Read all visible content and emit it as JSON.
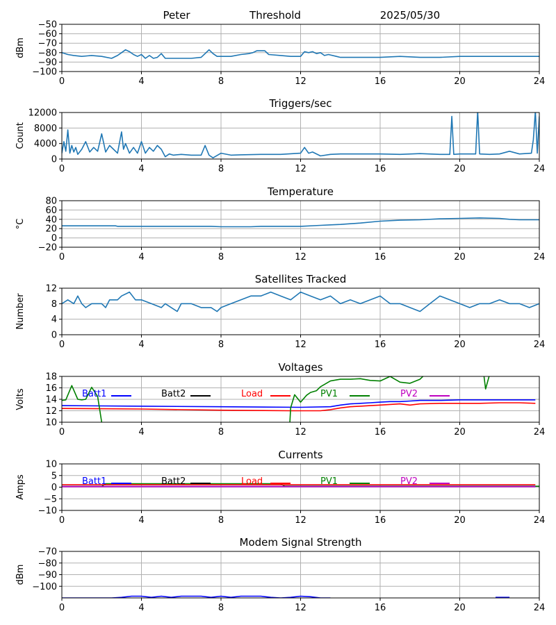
{
  "header": {
    "site": "Peter",
    "mode": "Threshold",
    "date": "2025/05/30"
  },
  "x_ticks": [
    "0",
    "4",
    "8",
    "12",
    "16",
    "20",
    "24"
  ],
  "colors": {
    "series": "#1f77b4",
    "grid": "#b0b0b0",
    "batt1": "#0000ff",
    "batt2": "#000000",
    "load": "#ff0000",
    "pv1": "#008000",
    "pv2": "#bf00bf"
  },
  "chart_data": [
    {
      "id": "threshold",
      "type": "line",
      "title": "",
      "ylabel": "dBm",
      "xlim": [
        0,
        24
      ],
      "ylim": [
        -100,
        -50
      ],
      "yticks": [
        -50,
        -60,
        -70,
        -80,
        -90,
        -100
      ],
      "grid": true,
      "series": [
        {
          "color": "#1f77b4",
          "x": [
            0,
            0.3,
            0.6,
            1,
            1.5,
            2,
            2.5,
            2.8,
            3,
            3.2,
            3.4,
            3.6,
            3.8,
            4,
            4.2,
            4.4,
            4.6,
            4.8,
            5,
            5.2,
            5.4,
            5.6,
            6,
            6.5,
            7,
            7.2,
            7.4,
            7.6,
            7.8,
            8,
            8.5,
            9,
            9.4,
            9.6,
            9.8,
            10,
            10.2,
            10.4,
            11,
            11.5,
            12,
            12.2,
            12.4,
            12.6,
            12.8,
            13,
            13.2,
            13.4,
            13.8,
            14,
            15,
            16,
            17,
            18,
            19,
            20,
            21,
            22,
            23,
            24
          ],
          "y": [
            -80,
            -82,
            -83,
            -84,
            -83,
            -84,
            -86,
            -83,
            -80,
            -77,
            -79,
            -82,
            -84,
            -82,
            -86,
            -83,
            -86,
            -85,
            -81,
            -86,
            -86,
            -86,
            -86,
            -86,
            -85,
            -81,
            -77,
            -81,
            -84,
            -84,
            -84,
            -82,
            -81,
            -80,
            -78,
            -78,
            -78,
            -82,
            -83,
            -84,
            -84,
            -79,
            -80,
            -79,
            -81,
            -80,
            -83,
            -82,
            -84,
            -85,
            -85,
            -85,
            -84,
            -85,
            -85,
            -84,
            -84,
            -84,
            -84,
            -84
          ]
        }
      ]
    },
    {
      "id": "triggers",
      "type": "line",
      "title": "Triggers/sec",
      "ylabel": "Count",
      "xlim": [
        0,
        24
      ],
      "ylim": [
        0,
        12000
      ],
      "yticks": [
        0,
        4000,
        8000,
        12000
      ],
      "grid": true,
      "series": [
        {
          "color": "#1f77b4",
          "x": [
            0,
            0.1,
            0.2,
            0.3,
            0.4,
            0.5,
            0.6,
            0.7,
            0.8,
            1,
            1.2,
            1.4,
            1.6,
            1.8,
            2,
            2.2,
            2.4,
            2.6,
            2.8,
            3,
            3.1,
            3.2,
            3.4,
            3.6,
            3.8,
            4,
            4.2,
            4.4,
            4.6,
            4.8,
            5,
            5.2,
            5.4,
            5.6,
            6,
            6.5,
            7,
            7.2,
            7.4,
            7.6,
            8,
            8.5,
            9,
            10,
            11,
            12,
            12.2,
            12.4,
            12.6,
            13,
            13.5,
            14,
            15,
            16,
            17,
            18,
            19,
            19.5,
            19.6,
            19.7,
            20,
            20.8,
            20.9,
            21,
            21.5,
            22,
            22.5,
            23,
            23.6,
            23.7,
            23.8,
            23.9,
            24
          ],
          "y": [
            1500,
            4500,
            2000,
            7500,
            1500,
            3500,
            1800,
            3000,
            1200,
            2500,
            4500,
            1800,
            3000,
            2000,
            6500,
            1800,
            3500,
            2500,
            1500,
            7000,
            2500,
            4000,
            1500,
            3000,
            1500,
            4500,
            1500,
            3000,
            2000,
            3500,
            2500,
            600,
            1300,
            1000,
            1200,
            1000,
            1000,
            3500,
            1000,
            300,
            1500,
            1000,
            1100,
            1200,
            1200,
            1500,
            3000,
            1500,
            1800,
            800,
            1200,
            1300,
            1300,
            1300,
            1200,
            1400,
            1200,
            1200,
            11000,
            1200,
            1300,
            1300,
            12500,
            1300,
            1200,
            1300,
            2000,
            1300,
            1500,
            5000,
            12300,
            1500,
            11000
          ]
        }
      ]
    },
    {
      "id": "temperature",
      "type": "line",
      "title": "Temperature",
      "ylabel": "°C",
      "xlim": [
        0,
        24
      ],
      "ylim": [
        -20,
        80
      ],
      "yticks": [
        80,
        60,
        40,
        20,
        0,
        -20
      ],
      "grid": true,
      "series": [
        {
          "color": "#1f77b4",
          "x": [
            0,
            2.7,
            2.8,
            7.5,
            8,
            9.5,
            10,
            12,
            13,
            13.5,
            14,
            15,
            16,
            17,
            18,
            19,
            20,
            21,
            22,
            22.5,
            23,
            24
          ],
          "y": [
            26,
            26,
            25,
            25,
            24,
            24,
            25,
            25,
            27,
            28,
            29,
            32,
            36,
            38,
            39,
            41,
            42,
            43,
            42,
            40,
            39,
            39
          ]
        }
      ]
    },
    {
      "id": "satellites",
      "type": "line",
      "title": "Satellites Tracked",
      "ylabel": "Number",
      "xlim": [
        0,
        24
      ],
      "ylim": [
        0,
        12
      ],
      "yticks": [
        12,
        8,
        4,
        0
      ],
      "grid": true,
      "series": [
        {
          "color": "#1f77b4",
          "x": [
            0,
            0.3,
            0.6,
            0.8,
            1,
            1.2,
            1.5,
            2,
            2.2,
            2.4,
            2.8,
            3,
            3.4,
            3.7,
            3.8,
            4,
            4.5,
            5,
            5.2,
            5.5,
            5.8,
            6,
            6.5,
            7,
            7.5,
            7.8,
            8,
            8.5,
            9,
            9.5,
            10,
            10.5,
            11,
            11.5,
            12,
            12.5,
            13,
            13.5,
            14,
            14.5,
            15,
            15.5,
            16,
            16.5,
            17,
            17.5,
            18,
            18.5,
            19,
            19.5,
            20,
            20.5,
            21,
            21.5,
            22,
            22.5,
            23,
            23.5,
            24
          ],
          "y": [
            8,
            9,
            8,
            10,
            8,
            7,
            8,
            8,
            7,
            9,
            9,
            10,
            11,
            9,
            9,
            9,
            8,
            7,
            8,
            7,
            6,
            8,
            8,
            7,
            7,
            6,
            7,
            8,
            9,
            10,
            10,
            11,
            10,
            9,
            11,
            10,
            9,
            10,
            8,
            9,
            8,
            9,
            10,
            8,
            8,
            7,
            6,
            8,
            10,
            9,
            8,
            7,
            8,
            8,
            9,
            8,
            8,
            7,
            8
          ]
        }
      ]
    },
    {
      "id": "voltages",
      "type": "line",
      "title": "Voltages",
      "ylabel": "Volts",
      "xlim": [
        0,
        24
      ],
      "ylim": [
        10,
        18
      ],
      "yticks": [
        18,
        16,
        14,
        12,
        10
      ],
      "grid": true,
      "legend": [
        "Batt1",
        "Batt2",
        "Load",
        "PV1",
        "PV2"
      ],
      "series": [
        {
          "name": "Batt1",
          "color": "#0000ff",
          "x": [
            0,
            4,
            8,
            12,
            13.5,
            14,
            14.5,
            15,
            15.5,
            16,
            16.5,
            17,
            17.5,
            18,
            19,
            20,
            21,
            22,
            23,
            23.8
          ],
          "y": [
            12.9,
            12.8,
            12.7,
            12.6,
            12.7,
            13.0,
            13.2,
            13.3,
            13.4,
            13.5,
            13.6,
            13.6,
            13.7,
            13.8,
            13.8,
            13.9,
            13.9,
            13.9,
            13.9,
            13.9
          ]
        },
        {
          "name": "Load",
          "color": "#ff0000",
          "x": [
            0,
            4,
            8,
            11.5,
            12,
            13,
            13.5,
            14,
            14.5,
            15,
            15.5,
            16,
            16.5,
            17,
            17.5,
            18,
            19,
            20,
            21,
            22,
            23,
            23.8
          ],
          "y": [
            12.4,
            12.3,
            12.1,
            12.0,
            12.0,
            12.0,
            12.2,
            12.5,
            12.7,
            12.8,
            12.9,
            13.0,
            13.1,
            13.2,
            13.0,
            13.2,
            13.3,
            13.3,
            13.3,
            13.4,
            13.4,
            13.3
          ],
          "color_key": "load"
        },
        {
          "name": "PV1",
          "color": "#008000",
          "x": [
            0,
            0.2,
            0.5,
            0.8,
            1,
            1.2,
            1.5,
            1.8,
            2,
            2.2,
            11.4,
            11.5,
            11.7,
            12,
            12.3,
            12.5,
            12.8,
            13,
            13.5,
            14,
            14.5,
            15,
            15.5,
            16,
            16.5,
            17,
            17.5,
            18,
            18.3,
            21.2,
            21.3,
            21.5
          ],
          "y": [
            13.8,
            13.9,
            16.4,
            14.0,
            13.9,
            14.0,
            16.1,
            14.5,
            10.0,
            6.0,
            6.0,
            12.5,
            14.8,
            13.5,
            14.7,
            15.2,
            15.5,
            16.2,
            17.2,
            17.5,
            17.5,
            17.6,
            17.3,
            17.2,
            18.0,
            17.0,
            16.8,
            17.5,
            18.5,
            18.5,
            15.8,
            18.3
          ]
        },
        {
          "name": "PV2",
          "color": "#bf00bf",
          "x": [],
          "y": []
        }
      ]
    },
    {
      "id": "currents",
      "type": "line",
      "title": "Currents",
      "ylabel": "Amps",
      "xlim": [
        0,
        24
      ],
      "ylim": [
        -10,
        10
      ],
      "yticks": [
        10,
        5,
        0,
        -5,
        -10
      ],
      "grid": true,
      "legend": [
        "Batt1",
        "Batt2",
        "Load",
        "PV1",
        "PV2"
      ],
      "series": [
        {
          "name": "PV1",
          "color": "#008000",
          "x": [
            0,
            2,
            2.2,
            11,
            11.2,
            24
          ],
          "y": [
            0.3,
            0.3,
            1.5,
            1.5,
            0.4,
            0.4
          ]
        },
        {
          "name": "Load",
          "color": "#ff0000",
          "x": [
            0,
            4,
            8,
            12,
            16,
            20,
            23.8
          ],
          "y": [
            1.0,
            1.0,
            1.0,
            1.0,
            1.0,
            1.0,
            1.0
          ]
        },
        {
          "name": "Batt1",
          "color": "#0000ff",
          "x": [
            0,
            23.8
          ],
          "y": [
            0.3,
            0.3
          ]
        },
        {
          "name": "PV2",
          "color": "#bf00bf",
          "x": [
            0,
            23.8
          ],
          "y": [
            0.2,
            0.2
          ]
        }
      ]
    },
    {
      "id": "modem",
      "type": "line",
      "title": "Modem Signal Strength",
      "ylabel": "dBm",
      "xlim": [
        0,
        24
      ],
      "ylim": [
        -110,
        -70
      ],
      "yticks": [
        -70,
        -80,
        -90,
        -100
      ],
      "grid": true,
      "series": [
        {
          "color": "#0000ff",
          "x": [
            0,
            2,
            2.5,
            3,
            3.5,
            4,
            4.5,
            5,
            5.5,
            6,
            7,
            7.5,
            8,
            8.5,
            9,
            10,
            10.5,
            11,
            11.5,
            12,
            12.5,
            13,
            13.5
          ],
          "y": [
            -110,
            -110,
            -110,
            -109.5,
            -108.5,
            -108.5,
            -109.5,
            -108.5,
            -109.5,
            -108.5,
            -108.5,
            -109.5,
            -108.5,
            -109.5,
            -108.5,
            -108.5,
            -109.5,
            -110,
            -109.5,
            -108.5,
            -109,
            -110,
            -110
          ]
        },
        {
          "color": "#0000ff",
          "x": [
            21.8,
            22.5
          ],
          "y": [
            -109.5,
            -109.5
          ]
        }
      ]
    }
  ]
}
